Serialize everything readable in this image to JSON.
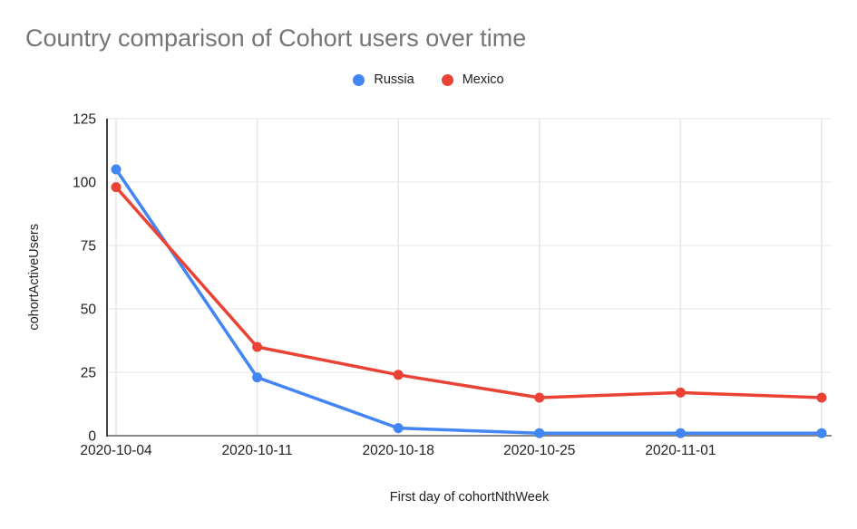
{
  "title": "Country comparison of Cohort users over time",
  "chart_data": {
    "type": "line",
    "title": "Country comparison of Cohort users over time",
    "xlabel": "First day of cohortNthWeek",
    "ylabel": "cohortActiveUsers",
    "categories": [
      "2020-10-04",
      "2020-10-11",
      "2020-10-18",
      "2020-10-25",
      "2020-11-01",
      ""
    ],
    "series": [
      {
        "name": "Russia",
        "color": "#4285F4",
        "values": [
          105,
          23,
          3,
          1,
          1,
          1
        ]
      },
      {
        "name": "Mexico",
        "color": "#EA4335",
        "values": [
          98,
          35,
          24,
          15,
          17,
          15
        ]
      }
    ],
    "ylim": [
      0,
      125
    ],
    "yticks": [
      0,
      25,
      50,
      75,
      100,
      125
    ],
    "grid": true,
    "legend_position": "top",
    "grid_color": "#e6e6e6",
    "y_axis_color": "#424242",
    "x_axis_color": "#8a8a8a",
    "tick_label_color": "#212121"
  }
}
